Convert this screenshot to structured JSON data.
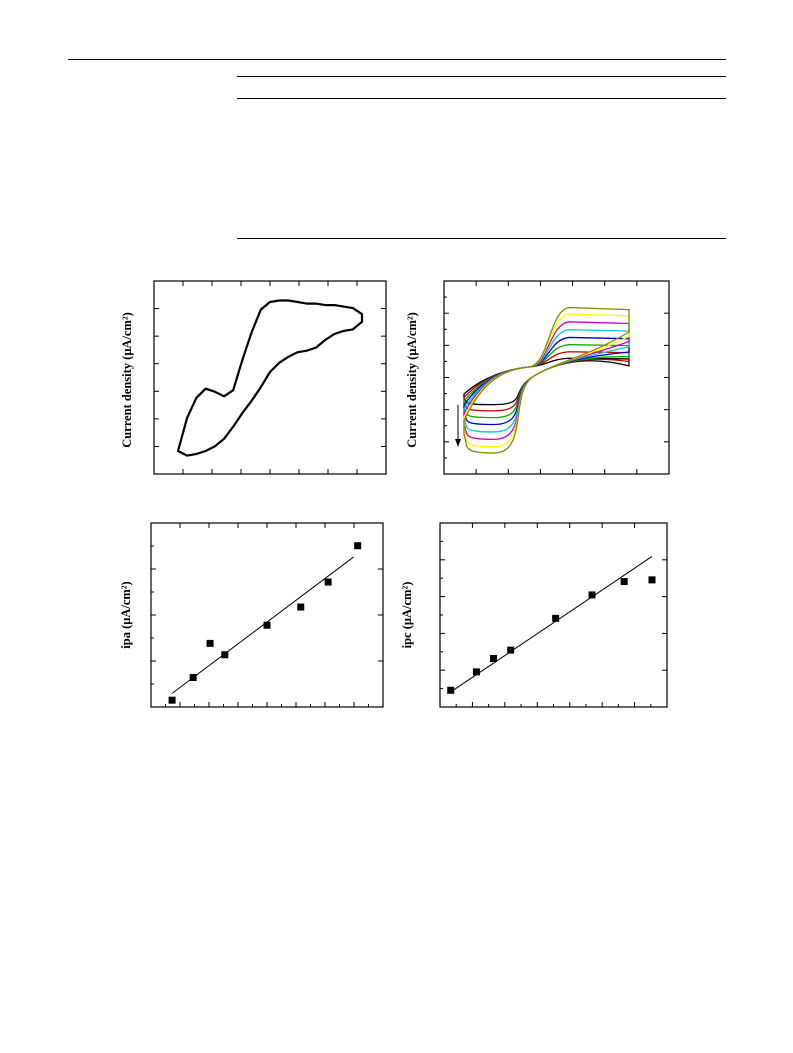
{
  "page": {
    "header_rule": true,
    "table_rules": 3
  },
  "colors": {
    "ink": "#000000",
    "cv_series": [
      "#000000",
      "#cc0000",
      "#00aa00",
      "#0000cc",
      "#00cccc",
      "#cc00cc",
      "#ffff00",
      "#888800"
    ]
  },
  "chart_data": [
    {
      "id": "cv-single",
      "type": "line",
      "title": "",
      "xlabel": "",
      "ylabel": "Current density (μA/cm²)",
      "grid": false,
      "series": [
        {
          "closed": true,
          "x": [
            0.0,
            0.05,
            0.1,
            0.15,
            0.2,
            0.25,
            0.3,
            0.35,
            0.4,
            0.45,
            0.5,
            0.55,
            0.6,
            0.65,
            0.7,
            0.75,
            0.8,
            0.85,
            0.9,
            0.95,
            1.0,
            1.0,
            0.95,
            0.9,
            0.85,
            0.8,
            0.75,
            0.7,
            0.65,
            0.6,
            0.55,
            0.5,
            0.45,
            0.4,
            0.35,
            0.3,
            0.25,
            0.2,
            0.15,
            0.1,
            0.05,
            0.0
          ],
          "y": [
            0.0,
            0.22,
            0.35,
            0.41,
            0.39,
            0.36,
            0.4,
            0.6,
            0.78,
            0.93,
            0.98,
            0.99,
            0.99,
            0.98,
            0.97,
            0.97,
            0.96,
            0.96,
            0.95,
            0.94,
            0.9,
            0.85,
            0.8,
            0.79,
            0.77,
            0.73,
            0.68,
            0.66,
            0.65,
            0.62,
            0.58,
            0.52,
            0.42,
            0.33,
            0.25,
            0.16,
            0.08,
            0.03,
            0.0,
            -0.02,
            -0.03,
            0.0
          ]
        }
      ]
    },
    {
      "id": "cv-scan-rates",
      "type": "line",
      "title": "",
      "xlabel": "",
      "ylabel": "Current density (μA/cm²)",
      "grid": false,
      "annotation": "arrow-down",
      "series_count": 8,
      "series_scale": [
        0.22,
        0.32,
        0.43,
        0.54,
        0.66,
        0.78,
        0.9,
        1.0
      ]
    },
    {
      "id": "ipa-plot",
      "type": "scatter",
      "title": "",
      "xlabel": "",
      "ylabel": "ipa (μA/cm²)",
      "grid": false,
      "points": [
        [
          1.0,
          1.0
        ],
        [
          2.0,
          2.0
        ],
        [
          2.8,
          3.5
        ],
        [
          3.5,
          3.0
        ],
        [
          5.5,
          4.3
        ],
        [
          7.1,
          5.1
        ],
        [
          8.4,
          6.2
        ],
        [
          9.8,
          7.8
        ]
      ],
      "fit": [
        [
          1.0,
          1.3
        ],
        [
          9.6,
          7.3
        ]
      ],
      "xlim": [
        0,
        11
      ],
      "ylim": [
        0.7,
        8.8
      ]
    },
    {
      "id": "ipc-plot",
      "type": "scatter",
      "title": "",
      "xlabel": "",
      "ylabel": "ipc (μA/cm²)",
      "grid": false,
      "points": [
        [
          0.5,
          1.0
        ],
        [
          1.7,
          2.1
        ],
        [
          2.5,
          2.9
        ],
        [
          3.3,
          3.4
        ],
        [
          5.4,
          5.3
        ],
        [
          7.1,
          6.7
        ],
        [
          8.6,
          7.5
        ],
        [
          9.9,
          7.6
        ]
      ],
      "fit": [
        [
          0.5,
          0.9
        ],
        [
          9.9,
          9.0
        ]
      ],
      "xlim": [
        0,
        10.6
      ],
      "ylim": [
        0,
        11
      ]
    }
  ]
}
